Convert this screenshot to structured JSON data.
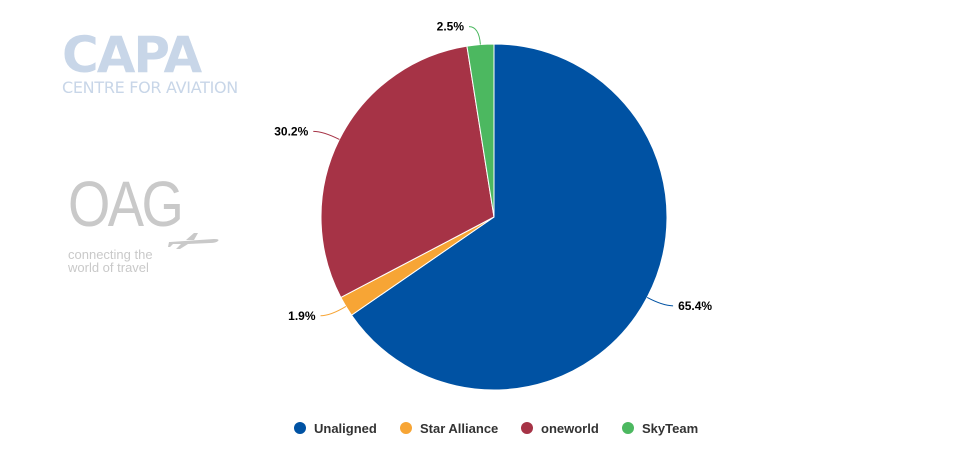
{
  "watermarks": {
    "capa": {
      "word": "CAPA",
      "tagline": "CENTRE FOR AVIATION",
      "color": "#c8d6e8"
    },
    "oag": {
      "word": "OAG",
      "tagline_line1": "connecting the",
      "tagline_line2": "world of travel",
      "icon": "airplane-icon",
      "color": "#c9c9c9"
    }
  },
  "chart_data": {
    "type": "pie",
    "title": "",
    "start_angle_deg": 0,
    "direction": "clockwise",
    "legend_position": "bottom",
    "slices": [
      {
        "name": "Unaligned",
        "value": 65.4,
        "label": "65.4%",
        "color": "#0052a3"
      },
      {
        "name": "Star Alliance",
        "value": 1.9,
        "label": "1.9%",
        "color": "#f7a535"
      },
      {
        "name": "oneworld",
        "value": 30.2,
        "label": "30.2%",
        "color": "#a63346"
      },
      {
        "name": "SkyTeam",
        "value": 2.5,
        "label": "2.5%",
        "color": "#4cb860"
      }
    ]
  }
}
